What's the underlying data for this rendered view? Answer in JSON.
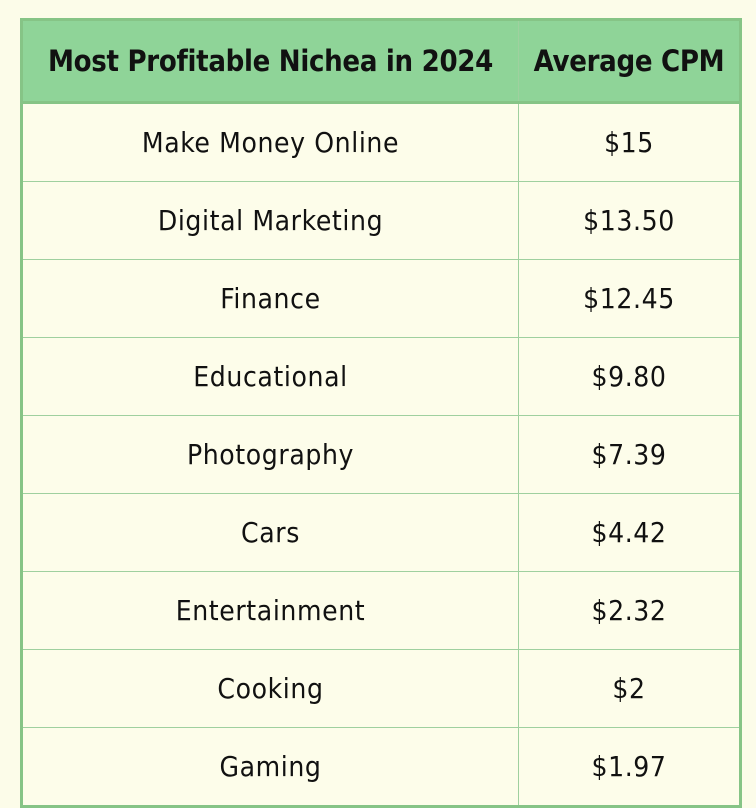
{
  "chart_data": {
    "type": "table",
    "columns": [
      "Most Profitable Nichea in 2024",
      "Average CPM"
    ],
    "rows": [
      {
        "niche": "Make Money Online",
        "cpm": "$15"
      },
      {
        "niche": "Digital Marketing",
        "cpm": "$13.50"
      },
      {
        "niche": "Finance",
        "cpm": "$12.45"
      },
      {
        "niche": "Educational",
        "cpm": "$9.80"
      },
      {
        "niche": "Photography",
        "cpm": "$7.39"
      },
      {
        "niche": "Cars",
        "cpm": "$4.42"
      },
      {
        "niche": "Entertainment",
        "cpm": "$2.32"
      },
      {
        "niche": "Cooking",
        "cpm": "$2"
      },
      {
        "niche": "Gaming",
        "cpm": "$1.97"
      }
    ]
  },
  "colors": {
    "header_background": "#8fd498",
    "body_background": "#fdfdea",
    "border": "#86c486"
  }
}
